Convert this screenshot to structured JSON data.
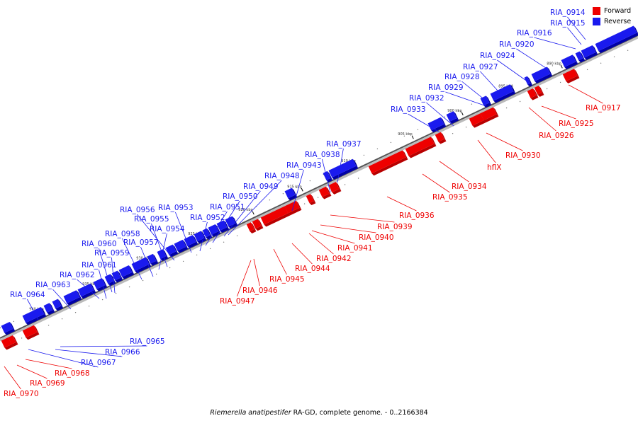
{
  "colors": {
    "forward": "#ee0000",
    "forward_edge": "#b80000",
    "reverse": "#1a1aee",
    "reverse_edge": "#0000a8",
    "axis": "#555555"
  },
  "legend": {
    "forward": "Forward",
    "reverse": "Reverse"
  },
  "caption_italic": "Riemerella anatipestifer",
  "caption_rest": " RA-GD, complete genome. - 0..2166384",
  "ticks": [
    "890 kbp",
    "895 kbp",
    "900 kbp",
    "905 kbp",
    "910 kbp",
    "915 kbp",
    "920 kbp",
    "925 kbp",
    "930 kbp",
    "935 kbp",
    "940 kbp",
    "945 kbp"
  ],
  "reverse_labels": [
    "RIA_0914",
    "RIA_0915",
    "RIA_0916",
    "RIA_0920",
    "RIA_0924",
    "RIA_0927",
    "RIA_0928",
    "RIA_0929",
    "RIA_0932",
    "RIA_0933",
    "RIA_0937",
    "RIA_0938",
    "RIA_0943",
    "RIA_0948",
    "RIA_0949",
    "RIA_0950",
    "RIA_0951",
    "RIA_0952",
    "RIA_0953",
    "RIA_0956",
    "RIA_0955",
    "RIA_0954",
    "RIA_0958",
    "RIA_0957",
    "RIA_0960",
    "RIA_0959",
    "RIA_0961",
    "RIA_0962",
    "RIA_0963",
    "RIA_0964",
    "RIA_0965",
    "RIA_0966",
    "RIA_0967"
  ],
  "forward_labels": [
    "RIA_0917",
    "RIA_0925",
    "RIA_0926",
    "RIA_0930",
    "hflX",
    "RIA_0934",
    "RIA_0935",
    "RIA_0936",
    "RIA_0939",
    "RIA_0940",
    "RIA_0941",
    "RIA_0942",
    "RIA_0944",
    "RIA_0945",
    "RIA_0946",
    "RIA_0947",
    "RIA_0968",
    "RIA_0969",
    "RIA_0970"
  ]
}
